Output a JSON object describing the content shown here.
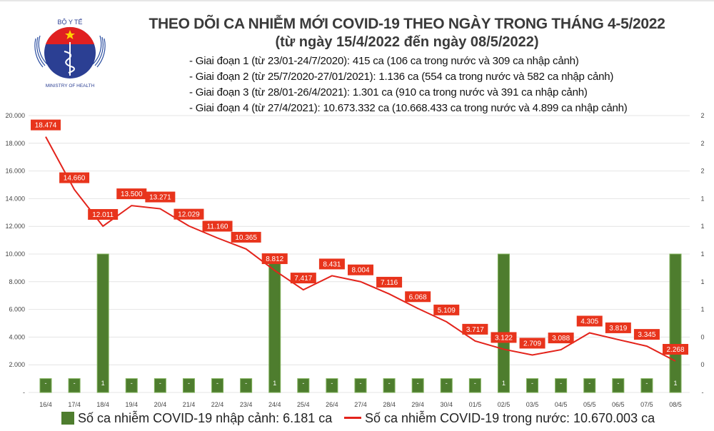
{
  "logo": {
    "text_top": "BỘ Y TẾ",
    "text_bottom": "MINISTRY OF HEALTH"
  },
  "title": "THEO DÕI CA NHIỄM MỚI COVID-19 THEO NGÀY TRONG THÁNG 4-5/2022",
  "subtitle": "(từ ngày 15/4/2022 đến ngày 08/5/2022)",
  "stages": [
    "- Giai đoạn 1 (từ 23/01-24/7/2020): 415 ca (106 ca trong nước và 309 ca nhập cảnh)",
    "- Giai đoạn 2 (từ 25/7/2020-27/01/2021): 1.136 ca (554 ca trong nước và 582 ca nhập cảnh)",
    "- Giai đoạn 3 (từ 28/01-26/4/2021): 1.301 ca (910 ca trong nước và 391 ca nhập cảnh)",
    "- Giai đoạn 4 (từ 27/4/2021): 10.673.332 ca (10.668.433 ca trong nước và 4.899 ca nhập cảnh)"
  ],
  "chart_data": {
    "type": "bar+line",
    "categories": [
      "16/4",
      "17/4",
      "18/4",
      "19/4",
      "20/4",
      "21/4",
      "22/4",
      "23/4",
      "24/4",
      "25/4",
      "26/4",
      "27/4",
      "28/4",
      "29/4",
      "30/4",
      "01/5",
      "02/5",
      "03/5",
      "04/5",
      "05/5",
      "06/5",
      "07/5",
      "08/5"
    ],
    "series": [
      {
        "name": "Số ca nhiễm COVID-19 nhập cảnh: 6.181 ca",
        "type": "bar",
        "axis": "right",
        "color": "#4e7d2e",
        "values": [
          0,
          0,
          1,
          0,
          0,
          0,
          0,
          0,
          1,
          0,
          0,
          0,
          0,
          0,
          0,
          0,
          1,
          0,
          0,
          0,
          0,
          0,
          1
        ],
        "labels": [
          "-",
          "-",
          "1",
          "-",
          "-",
          "-",
          "-",
          "-",
          "1",
          "-",
          "-",
          "-",
          "-",
          "-",
          "-",
          "-",
          "1",
          "-",
          "-",
          "-",
          "-",
          "-",
          "1"
        ]
      },
      {
        "name": "Số ca nhiễm COVID-19 trong nước: 10.670.003 ca",
        "type": "line",
        "axis": "left",
        "color": "#e3231b",
        "values": [
          18474,
          14660,
          12011,
          13500,
          13271,
          12029,
          11160,
          10365,
          8812,
          7417,
          8431,
          8004,
          7116,
          6068,
          5109,
          3717,
          3122,
          2709,
          3088,
          4305,
          3819,
          3345,
          2268
        ],
        "labels": [
          "18.474",
          "14.660",
          "12.011",
          "13.500",
          "13.271",
          "12.029",
          "11.160",
          "10.365",
          "8.812",
          "7.417",
          "8.431",
          "8.004",
          "7.116",
          "6.068",
          "5.109",
          "3.717",
          "3.122",
          "2.709",
          "3.088",
          "4.305",
          "3.819",
          "3.345",
          "2.268"
        ]
      }
    ],
    "left_axis": {
      "ylim": [
        0,
        20000
      ],
      "ticks": [
        "-",
        "2.000",
        "4.000",
        "6.000",
        "8.000",
        "10.000",
        "12.000",
        "14.000",
        "16.000",
        "18.000",
        "20.000"
      ]
    },
    "right_axis": {
      "ylim": [
        0,
        2
      ],
      "ticks": [
        "-",
        "0",
        "0",
        "1",
        "1",
        "1",
        "1",
        "1",
        "2",
        "2",
        "2"
      ]
    },
    "grid": true,
    "legend": "bottom"
  }
}
